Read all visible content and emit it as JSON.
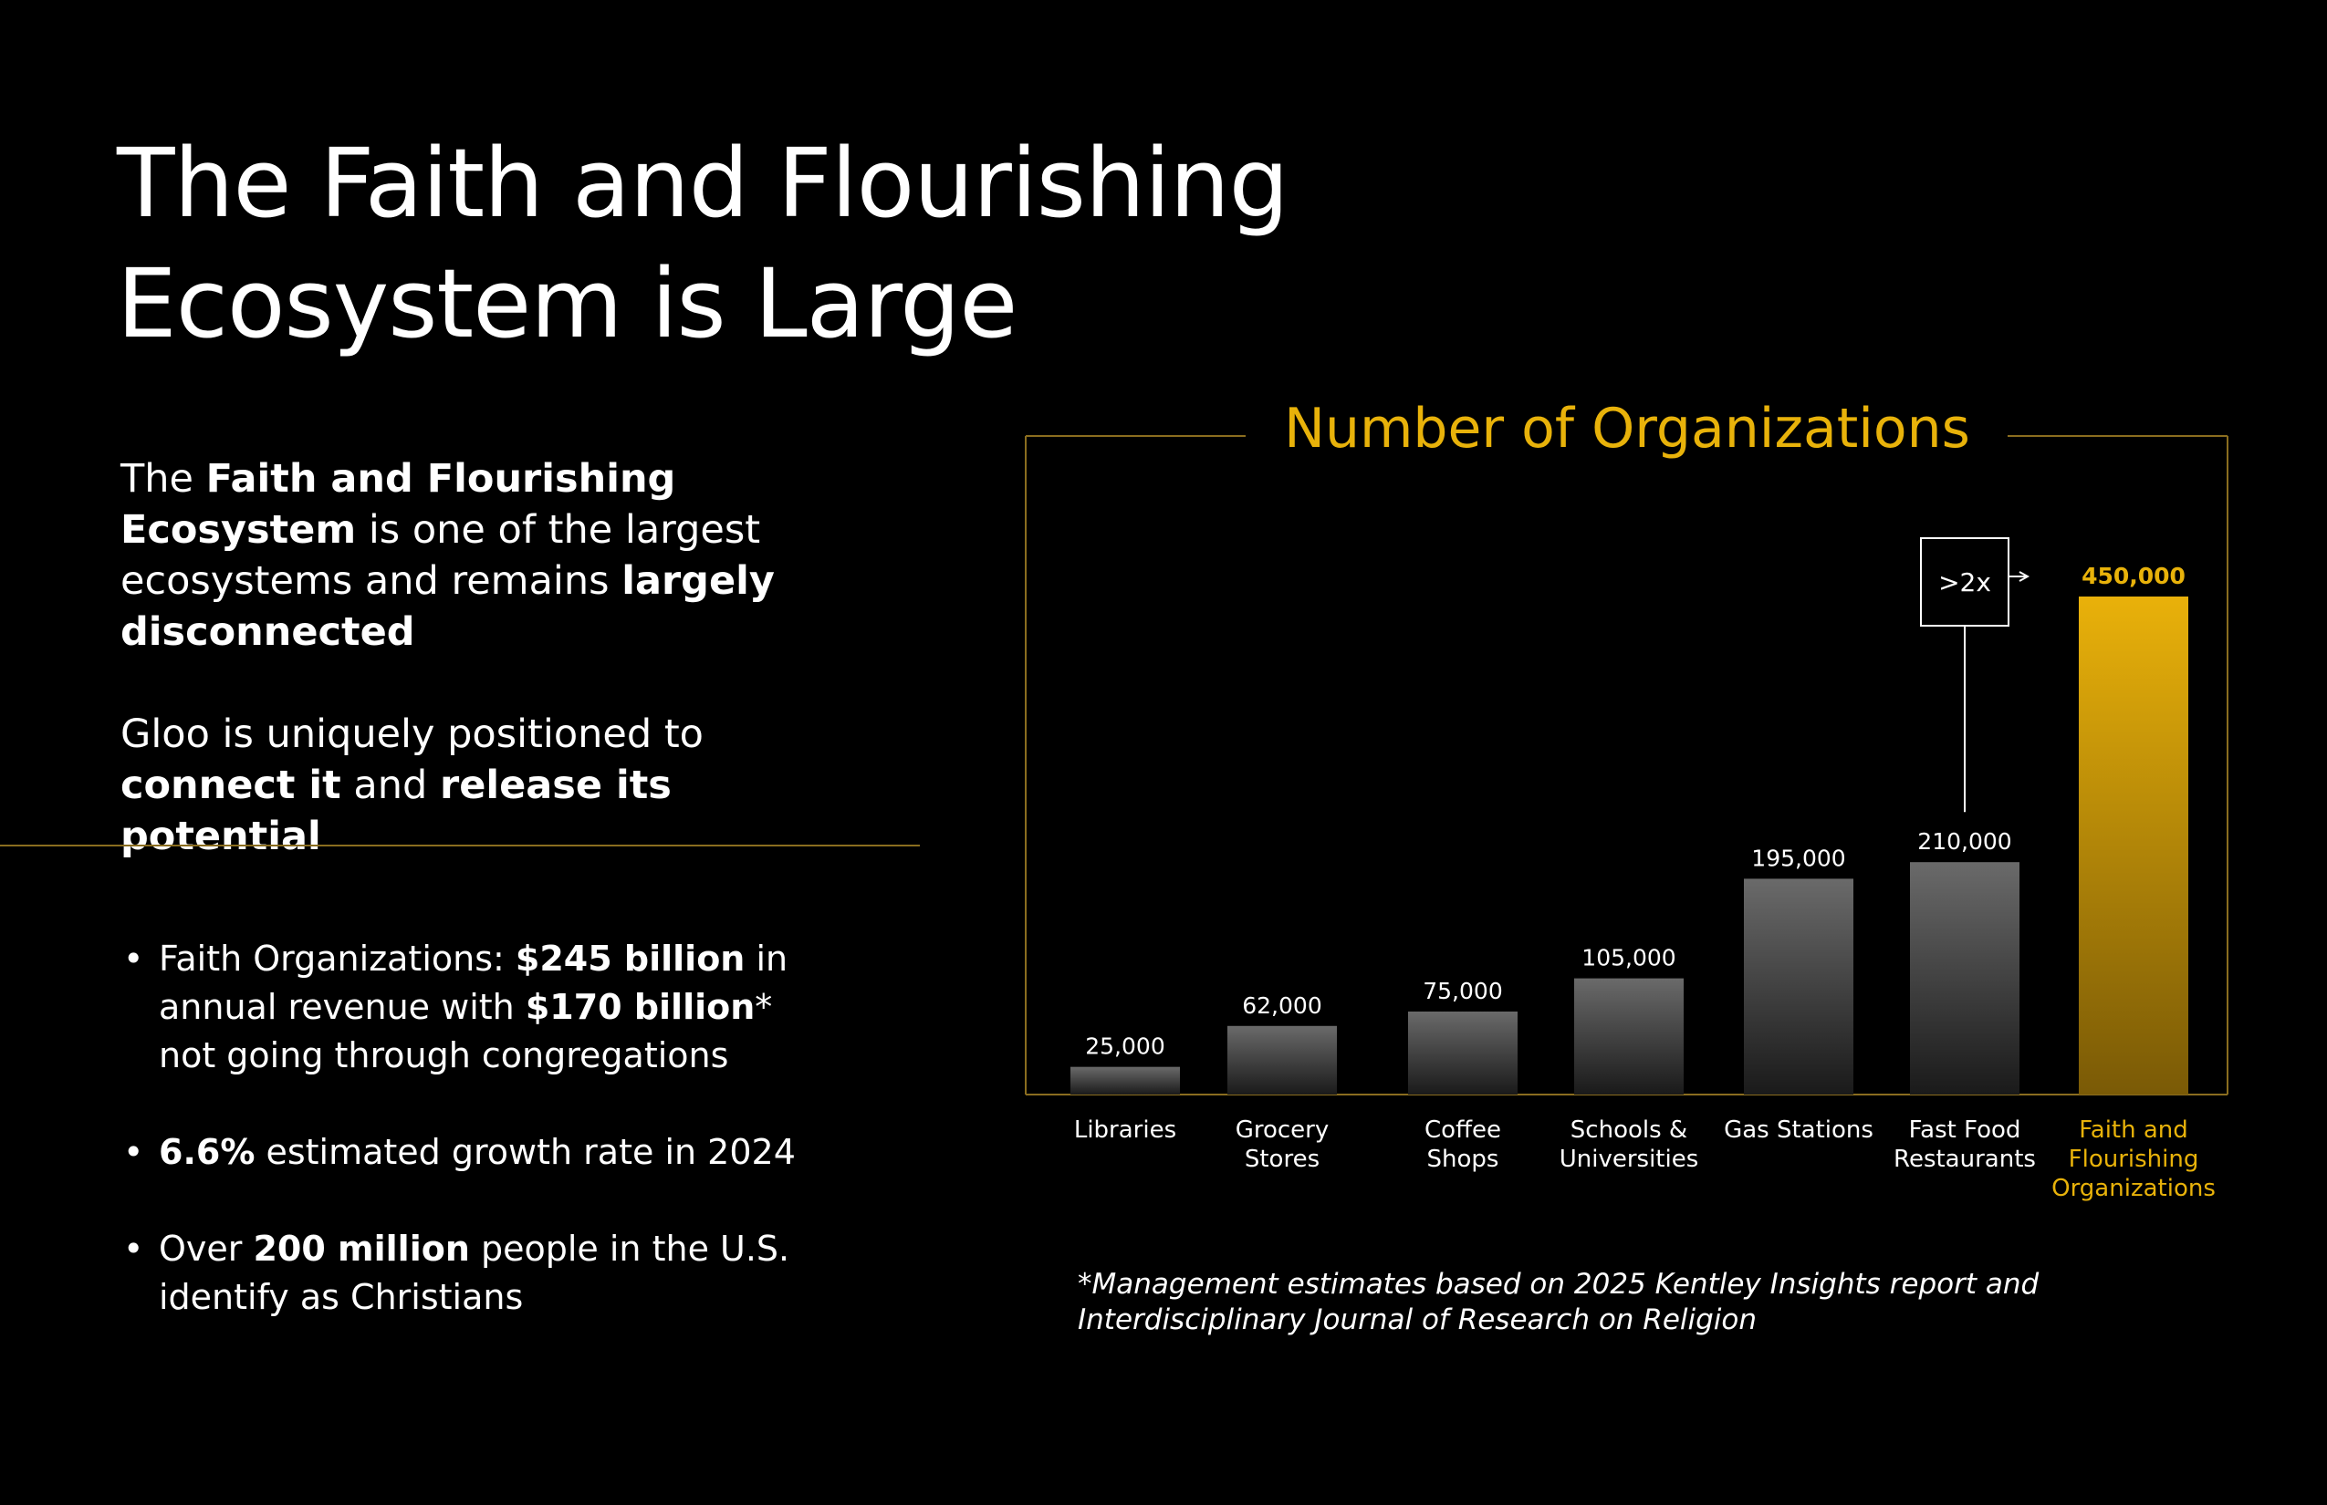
{
  "slide": {
    "title_lines": [
      "The Faith and Flourishing",
      "Ecosystem is Large"
    ],
    "intro": {
      "p1": [
        "The ",
        "Faith and Flourishing Ecosystem",
        " is one of the largest ecosystems and remains ",
        "largely disconnected"
      ],
      "p2": [
        "Gloo is uniquely positioned to ",
        "connect it",
        " and ",
        "release its potential"
      ]
    },
    "bullets": [
      {
        "marker": "•",
        "parts": [
          "Faith Organizations: ",
          "$245 billion",
          " in annual revenue with ",
          "$170 billion",
          "* not going through congregations"
        ]
      },
      {
        "marker": "•",
        "parts": [
          "6.6%",
          " estimated growth rate in 2024"
        ]
      },
      {
        "marker": "•",
        "parts": [
          "Over ",
          "200 million",
          " people in the U.S. identify as Christians"
        ]
      }
    ],
    "footnote_lines": [
      "*Management estimates based on 2025 Kentley Insights report and",
      "Interdisciplinary Journal of Research on Religion"
    ]
  },
  "chart_data": {
    "type": "bar",
    "title": "Number of Organizations",
    "categories": [
      [
        "Libraries"
      ],
      [
        "Grocery",
        "Stores"
      ],
      [
        "Coffee",
        "Shops"
      ],
      [
        "Schools &",
        "Universities"
      ],
      [
        "Gas Stations"
      ],
      [
        "Fast Food",
        "Restaurants"
      ],
      [
        "Faith and",
        "Flourishing",
        "Organizations"
      ]
    ],
    "values": [
      25000,
      62000,
      75000,
      105000,
      195000,
      210000,
      450000
    ],
    "value_labels": [
      "25,000",
      "62,000",
      "75,000",
      "105,000",
      "195,000",
      "210,000",
      "450,000"
    ],
    "highlight_index": 6,
    "annotation": {
      "text": ">2x",
      "from_index": 5,
      "to_index": 6
    },
    "xlabel": "",
    "ylabel": "",
    "ylim": [
      0,
      450000
    ],
    "grid": false,
    "colors": {
      "accent": "#e8b20a",
      "frame": "#8a6d1f",
      "bar_top": "#6a6a6a",
      "bar_bottom": "#1a1a1a",
      "highlight_top": "#e9b10a",
      "highlight_bottom": "#7a5a06",
      "label": "#ffffff"
    }
  }
}
